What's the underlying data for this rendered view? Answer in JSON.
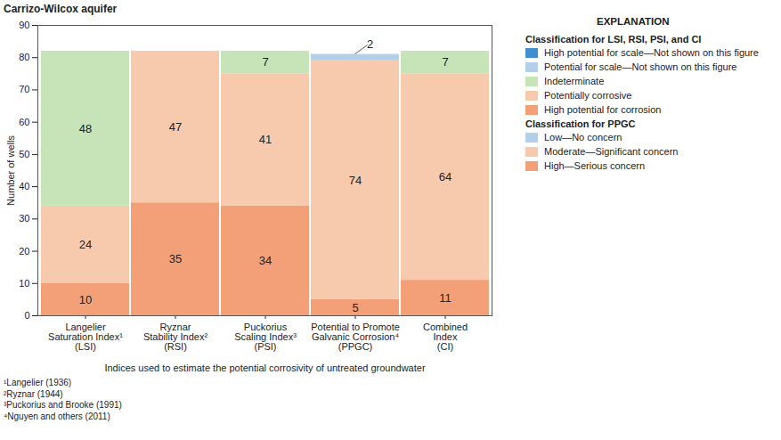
{
  "chart_data": {
    "type": "bar",
    "stacked": true,
    "data_labels": true,
    "grid": false,
    "title": "Carrizo-Wilcox aquifer",
    "x_label": "Indices used to estimate the potential corrosivity of untreated groundwater",
    "y_label": "Number of wells",
    "categories": [
      "Langelier\nSaturation Index¹\n(LSI)",
      "Ryznar\nStability Index²\n(RSI)",
      "Puckorius\nScaling Index³\n(PSI)",
      "Potential to Promote\nGalvanic Corrosion⁴\n(PPGC)",
      "Combined\nIndex\n(CI)"
    ],
    "ylim": [
      0,
      90
    ],
    "yticks": [
      0,
      10,
      20,
      30,
      40,
      50,
      60,
      70,
      80,
      90
    ],
    "series": [
      {
        "name": "High potential for corrosion",
        "color": "#f3a078",
        "values": [
          10,
          35,
          34,
          null,
          11
        ]
      },
      {
        "name": "Potentially corrosive",
        "color": "#f8caad",
        "values": [
          24,
          47,
          41,
          null,
          64
        ]
      },
      {
        "name": "Indeterminate",
        "color": "#c6e4b8",
        "values": [
          48,
          null,
          7,
          null,
          7
        ]
      },
      {
        "name": "High—Serious concern",
        "color": "#f3a078",
        "values": [
          null,
          null,
          null,
          5,
          null
        ]
      },
      {
        "name": "Moderate—Significant concern",
        "color": "#f8caad",
        "values": [
          null,
          null,
          null,
          74,
          null
        ]
      },
      {
        "name": "Low—No concern",
        "color": "#b3d0ea",
        "values": [
          null,
          null,
          null,
          2,
          null
        ]
      },
      {
        "name": "Potential for scale—Not shown on this figure",
        "color": "#b3d0ea",
        "values": [
          null,
          null,
          null,
          null,
          null
        ]
      },
      {
        "name": "High potential for scale—Not shown on this figure",
        "color": "#3f8fd2",
        "values": [
          null,
          null,
          null,
          null,
          null
        ]
      }
    ],
    "legend_title": "EXPLANATION",
    "legend_groups": [
      {
        "title": "Classification for LSI, RSI, PSI, and CI",
        "names": [
          "High potential for scale—Not shown on this figure",
          "Potential for scale—Not shown on this figure",
          "Indeterminate",
          "Potentially corrosive",
          "High potential for corrosion"
        ]
      },
      {
        "title": "Classification for PPGC",
        "names": [
          "Low—No concern",
          "Moderate—Significant concern",
          "High—Serious concern"
        ]
      }
    ],
    "footnotes": [
      "¹Langelier (1936)",
      "²Ryznar (1944)",
      "³Puckorius and Brooke (1991)",
      "⁴Nguyen and others (2011)"
    ]
  }
}
